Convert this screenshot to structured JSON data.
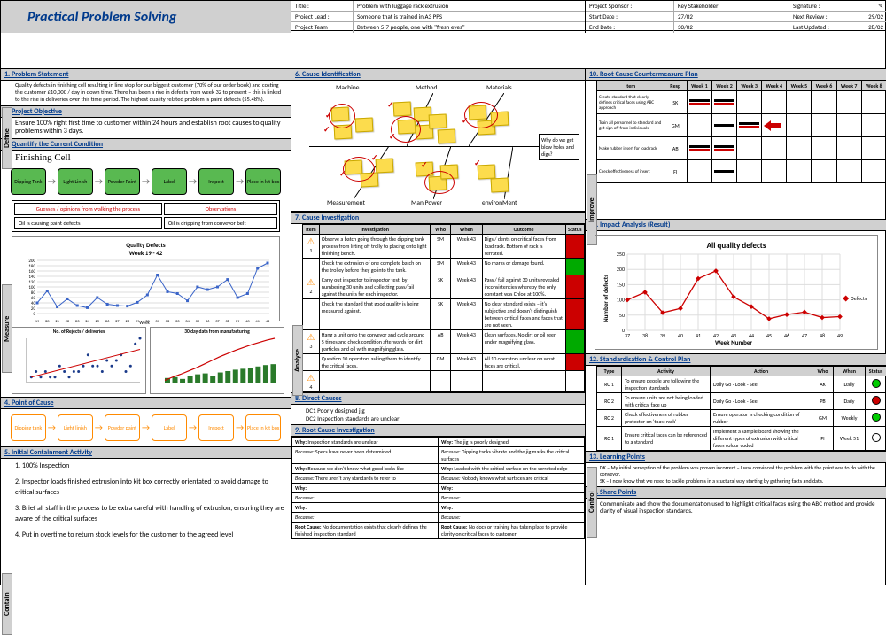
{
  "title": "Practical Problem Solving",
  "header_mid": {
    "r1": {
      "k": "Title :",
      "v": "Problem with luggage rack extrusion"
    },
    "r2": {
      "k": "Project Lead :",
      "v": "Someone that is trained in A3 PPS"
    },
    "r3": {
      "k": "Project Team :",
      "v": "Between 5-7 people, one with \"fresh eyes\""
    }
  },
  "header_right": {
    "r1": {
      "k": "Project Sponsor :",
      "v": "Key Stakeholder",
      "k2": "Signature :",
      "v2": ""
    },
    "r2": {
      "k": "Start Date :",
      "v": "27/02",
      "k2": "Next Review :",
      "v2": "29/02"
    },
    "r3": {
      "k": "End Date :",
      "v": "30/02",
      "k2": "Last Updated :",
      "v2": "28/02"
    }
  },
  "sidetabs": {
    "define": "Define",
    "measure": "Measure",
    "contain": "Contain",
    "analyse": "Analyse",
    "improve": "Improve",
    "control": "Control"
  },
  "s1": {
    "h": "1. Problem Statement",
    "b": "Quality defects in finishing cell resulting in line stop for our biggest customer (70% of our order book) and costing the customer £10,000 / day in down time. There has been a rise in defects from week 32 to present – this is linked to the rise in deliveries over this time period. The highest quality related problem is paint defects (55.48%)."
  },
  "s2": {
    "h": "2. Project Objective",
    "b": "Ensure 100% right first time to customer within 24 hours and establish root causes to quality problems within 3 days."
  },
  "s3": {
    "h": "3. Quantify the Current Condition",
    "cell": "Finishing Cell",
    "flow": [
      "Dipping Tank",
      "Light Linish",
      "Powder Paint",
      "Label",
      "Inspect",
      "Place in kit box"
    ],
    "go": {
      "gh": "Guesses / opinions from walking the process",
      "oh": "Observations",
      "g1": "Oil is causing paint defects",
      "o1": "Oil is dripping from conveyor belt"
    },
    "qchart": {
      "title": "Quality Defects\nWeek 19 - 42",
      "ylim": [
        0,
        200
      ],
      "yticks": [
        0,
        20,
        40,
        60,
        80,
        100,
        120,
        140,
        160,
        180,
        200
      ],
      "x": [
        19,
        20,
        21,
        22,
        23,
        24,
        25,
        26,
        27,
        28,
        29,
        30,
        31,
        32,
        33,
        34,
        35,
        36,
        37,
        38,
        39,
        40,
        41,
        42
      ],
      "y": [
        40,
        85,
        25,
        55,
        30,
        22,
        60,
        35,
        30,
        28,
        42,
        70,
        145,
        82,
        75,
        48,
        100,
        90,
        100,
        128,
        60,
        75,
        170,
        190
      ],
      "line_color": "#3a64c8",
      "marker_color": "#3a64c8",
      "grid_color": "#ddd"
    },
    "mini1": {
      "title": "No. of Rejects / deliveries",
      "type": "scatter",
      "x": [
        1,
        2,
        3,
        4,
        5,
        6,
        7,
        8,
        9,
        10,
        11,
        12,
        13,
        14,
        15,
        16,
        17,
        18,
        19,
        20,
        21,
        22,
        23,
        24
      ],
      "y": [
        1,
        2,
        1,
        2,
        1,
        1,
        3,
        2,
        1,
        2,
        2,
        3,
        5,
        3,
        3,
        2,
        4,
        3,
        4,
        5,
        2,
        3,
        7,
        8
      ],
      "marker_color": "#1a3a8a",
      "trend_color": "#c00"
    },
    "mini2": {
      "title": "30 day data from manufacturing",
      "type": "combo",
      "bars": [
        10,
        12,
        8,
        15,
        18,
        20,
        14,
        22,
        25,
        28,
        30,
        32,
        35,
        38,
        40
      ],
      "bar_color": "#2a7a2a",
      "line": [
        5,
        12,
        18,
        25,
        32,
        40,
        48,
        56,
        63,
        70,
        76,
        82,
        87,
        92,
        96
      ],
      "line_color": "#c00"
    }
  },
  "s4": {
    "h": "4. Point of Cause",
    "flow": [
      "Dipping tank",
      "Light linish",
      "Powder paint",
      "Label",
      "Inspect",
      "Place in kit box"
    ]
  },
  "s5": {
    "h": "5. Initial Containment Activity",
    "items": [
      "1. 100% Inspection",
      "2. Inspector loads finished extrusion into kit box correctly orientated to avoid damage to critical surfaces",
      "3. Brief all staff in the process to be extra careful with handling of extrusion, ensuring they are aware of the critical surfaces",
      "4. Put in overtime to return stock levels for the customer to the agreed level"
    ]
  },
  "s6": {
    "h": "6. Cause Identification",
    "cats": {
      "t1": "Machine",
      "t2": "Method",
      "t3": "Materials",
      "b1": "Measurement",
      "b2": "Man Power",
      "b3": "environMent"
    },
    "head": "Why do we get blow holes and digs?"
  },
  "s7": {
    "h": "7. Cause Investigation",
    "cols": [
      "Item",
      "Investigation",
      "Who",
      "When",
      "Outcome",
      "Status"
    ],
    "rows": [
      {
        "n": "1",
        "inv": "Observe a batch going through the dipping tank process from lifting off trolly to placing onto light finishing bench.",
        "who": "SM",
        "when": "Week 43",
        "out": "Digs / dents on critical faces from load rack. Bottom of rack is serrated.",
        "st": "r"
      },
      {
        "n": "",
        "inv": "Check the extrusion of one complete batch on the trolley before they go into the tank.",
        "who": "SM",
        "when": "Week 43",
        "out": "No marks or damage found.",
        "st": "g"
      },
      {
        "n": "2",
        "inv": "Carry out inspector to inspector test, by numbering 30 units and collecting pass/fail against the units for each inspector.",
        "who": "SK",
        "when": "Week 43",
        "out": "Pass / fail against 30 units revealed inconsistencies whereby the only constant was Chloe at 100%.",
        "st": "r"
      },
      {
        "n": "",
        "inv": "Check the standard that good quality is being measured against.",
        "who": "SK",
        "when": "Week 43",
        "out": "No clear standard exists – it's subjective and doesn't distinguish between critical faces and faces that are not seen.",
        "st": "r"
      },
      {
        "n": "3",
        "inv": "Hang a unit onto the conveyor and cycle around 5 times and check condition afterwards for dirt particles and oil with magnifying glass.",
        "who": "AB",
        "when": "Week 43",
        "out": "Clean surfaces. No dirt or oil seen under magnifying glass.",
        "st": "g"
      },
      {
        "n": "",
        "inv": "Question 10 operators asking them to identify the critical faces.",
        "who": "GM",
        "when": "Week 43",
        "out": "All 10 operators unclear on what faces are critical.",
        "st": "r"
      },
      {
        "n": "4",
        "inv": "",
        "who": "",
        "when": "",
        "out": "",
        "st": ""
      }
    ]
  },
  "s8": {
    "h": "8. Direct Causes",
    "items": [
      "DC1  Poorly designed jig",
      "DC2  Inspection standards are unclear"
    ]
  },
  "s9": {
    "h": "9. Root Cause Investigation",
    "left": {
      "w1": "Inspection standards are unclear",
      "b1": "Specs have never been determined",
      "w2": "Because we don't know what good looks like",
      "b2": "There aren't any standards to refer to",
      "rc": "No documentation exists that clearly defines the finished  inspection standard"
    },
    "right": {
      "w1": "The jig is poorly designed",
      "b1": "Dipping tanks vibrate and the jig marks the critical surfaces",
      "w2": "Loaded with the critical surface on the serrated edge",
      "b2": "Nobody knows what surfaces are critical",
      "rc": "No docs or training has taken place to provide clarity on critical faces to customer"
    }
  },
  "s10": {
    "h": "10. Root Cause Countermeasure Plan",
    "cols": [
      "Item",
      "Resp",
      "Week 1",
      "Week 2",
      "Week 3",
      "Week 4",
      "Week 5",
      "Week 6",
      "Week 7",
      "Week 8"
    ],
    "rows": [
      {
        "item": "Create standard that clearly defines critical faces using ABC approach",
        "resp": "SK",
        "plan": [
          1,
          2
        ],
        "actual": [
          1,
          1.5
        ]
      },
      {
        "item": "Train all personnel to standard and get sign off from individuals",
        "resp": "GM",
        "plan": [
          2,
          3
        ],
        "actual": [
          2.5,
          4
        ]
      },
      {
        "item": "Make rubber insert for load rack",
        "resp": "AB",
        "plan": [
          1,
          1.5
        ],
        "actual": [
          1,
          1.3
        ]
      },
      {
        "item": "Check effectiveness of insert",
        "resp": "FI",
        "plan": [
          1.5,
          2
        ],
        "actual": []
      }
    ],
    "colors": {
      "plan": "#000",
      "actual": "#c00",
      "bg": "#fff"
    }
  },
  "s11": {
    "h": "11. Impact Analysis (Result)",
    "chart": {
      "title": "All quality defects",
      "xlabel": "Week Number",
      "ylabel": "Number of defects",
      "x": [
        37,
        38,
        39,
        40,
        41,
        42,
        43,
        44,
        45,
        46,
        47,
        48,
        49
      ],
      "y": [
        100,
        125,
        58,
        72,
        170,
        195,
        110,
        78,
        38,
        52,
        60,
        42,
        45
      ],
      "xlim": [
        37,
        49
      ],
      "ylim": [
        0,
        250
      ],
      "yticks": [
        0,
        50,
        100,
        150,
        200,
        250
      ],
      "line_color": "#c00",
      "marker_color": "#c00",
      "marker_size": 4,
      "grid_color": "#ddd",
      "legend": "Defects"
    }
  },
  "s12": {
    "h": "12. Standardisation & Control Plan",
    "cols": [
      "Type",
      "Activity",
      "Action",
      "Who",
      "When",
      "Status"
    ],
    "rows": [
      {
        "t": "RC 1",
        "a": "To ensure people are following the inspection standards",
        "ac": "Daily Go - Look - See",
        "w": "AK",
        "wh": "Daily",
        "s": "g"
      },
      {
        "t": "RC 2",
        "a": "To ensure units are not being loaded with critical face up",
        "ac": "Daily Go - Look - See",
        "w": "PB",
        "wh": "Daily",
        "s": "r"
      },
      {
        "t": "RC 2",
        "a": "Check effectiveness of rubber protector on 'toast rack'",
        "ac": "Ensure operator is checking condition of rubber",
        "w": "GM",
        "wh": "Weekly",
        "s": "g"
      },
      {
        "t": "RC 1",
        "a": "Ensure critical faces can be referenced to a standard",
        "ac": "Implement a sample board showing the different types of extrusion with critical faces colour coded",
        "w": "FI",
        "wh": "Week 51",
        "s": "w"
      }
    ]
  },
  "s13": {
    "h": "13. Learning Points",
    "b": "DK – My initial perception of the problem was proven incorrect – I was convinced the problem with the paint was to do with the conveyor.\nSK – I now know that we need to tackle problems in a stuctural way starting by gathering facts and data."
  },
  "s14": {
    "h": "14. Share Points",
    "b": "Communicate and show the documentation used to highlight critical faces using the ABC method and provide clarity of visual inspection standards."
  }
}
